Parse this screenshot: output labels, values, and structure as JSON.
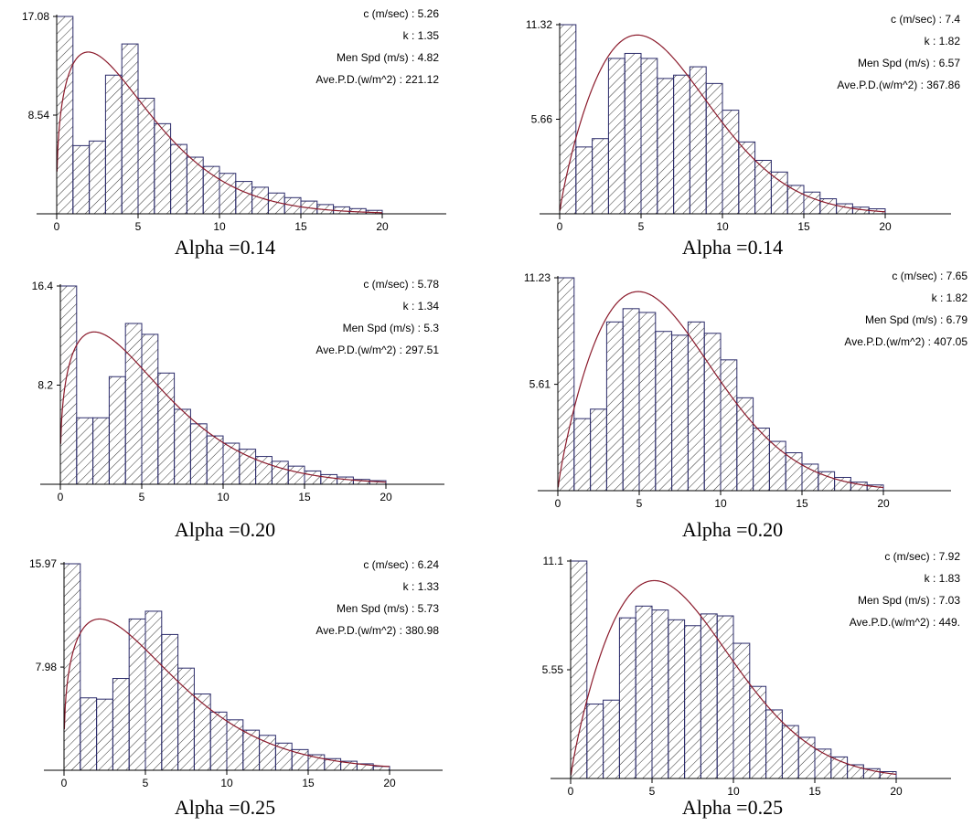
{
  "colors": {
    "bar_stroke": "#2a2a6a",
    "hatch": "#333333",
    "curve": "#8b1a2b",
    "axis": "#000000"
  },
  "chart_data": [
    {
      "type": "bar",
      "caption": "Alpha =0.14",
      "y_ticks": [
        "17.08",
        "8.54"
      ],
      "y_tick_values": [
        17.08,
        8.54
      ],
      "x_ticks": [
        "0",
        "5",
        "10",
        "15",
        "20"
      ],
      "xlim": [
        0,
        24
      ],
      "ylim": [
        0,
        17.08
      ],
      "bin_width": 1,
      "values": [
        17.08,
        5.9,
        6.3,
        12.0,
        14.7,
        10.0,
        7.8,
        6.0,
        4.9,
        4.1,
        3.5,
        2.8,
        2.3,
        1.8,
        1.4,
        1.1,
        0.8,
        0.6,
        0.45,
        0.3
      ],
      "stats": [
        {
          "label": "c (m/sec)",
          "value": "5.26"
        },
        {
          "label": "k",
          "value": "1.35"
        },
        {
          "label": "Men Spd (m/s)",
          "value": "4.82"
        },
        {
          "label": "Ave.P.D.(w/m^2)",
          "value": "221.12"
        }
      ],
      "weibull": {
        "c": 5.26,
        "k": 1.35,
        "peak": 14.0
      }
    },
    {
      "type": "bar",
      "caption": "Alpha =0.14",
      "y_ticks": [
        "11.32",
        "5.66"
      ],
      "y_tick_values": [
        11.32,
        5.66
      ],
      "x_ticks": [
        "0",
        "5",
        "10",
        "15",
        "20"
      ],
      "xlim": [
        0,
        24
      ],
      "ylim": [
        0,
        11.32
      ],
      "bin_width": 1,
      "values": [
        11.32,
        4.0,
        4.5,
        9.3,
        9.6,
        9.3,
        8.1,
        8.3,
        8.8,
        7.8,
        6.2,
        4.3,
        3.2,
        2.5,
        1.7,
        1.3,
        0.9,
        0.6,
        0.4,
        0.3
      ],
      "stats": [
        {
          "label": "c (m/sec)",
          "value": "7.4"
        },
        {
          "label": "k",
          "value": "1.82"
        },
        {
          "label": "Men Spd (m/s)",
          "value": "6.57"
        },
        {
          "label": "Ave.P.D.(w/m^2)",
          "value": "367.86"
        }
      ],
      "weibull": {
        "c": 7.4,
        "k": 1.82,
        "peak": 10.7
      }
    },
    {
      "type": "bar",
      "caption": "Alpha =0.20",
      "y_ticks": [
        "16.4",
        "8.2"
      ],
      "y_tick_values": [
        16.4,
        8.2
      ],
      "x_ticks": [
        "0",
        "5",
        "10",
        "15",
        "20"
      ],
      "xlim": [
        0,
        24
      ],
      "ylim": [
        0,
        16.4
      ],
      "bin_width": 1,
      "values": [
        16.4,
        5.5,
        5.5,
        8.9,
        13.3,
        12.4,
        9.2,
        6.2,
        5.0,
        4.0,
        3.4,
        2.9,
        2.3,
        1.9,
        1.5,
        1.1,
        0.8,
        0.6,
        0.4,
        0.3
      ],
      "stats": [
        {
          "label": "c (m/sec)",
          "value": "5.78"
        },
        {
          "label": "k",
          "value": "1.34"
        },
        {
          "label": "Men Spd (m/s)",
          "value": "5.3"
        },
        {
          "label": "Ave.P.D.(w/m^2)",
          "value": "297.51"
        }
      ],
      "weibull": {
        "c": 5.78,
        "k": 1.34,
        "peak": 12.6
      }
    },
    {
      "type": "bar",
      "caption": "Alpha =0.20",
      "y_ticks": [
        "11.23",
        "5.61"
      ],
      "y_tick_values": [
        11.23,
        5.61
      ],
      "x_ticks": [
        "0",
        "5",
        "10",
        "15",
        "20"
      ],
      "xlim": [
        0,
        24
      ],
      "ylim": [
        0,
        11.23
      ],
      "bin_width": 1,
      "values": [
        11.23,
        3.8,
        4.3,
        8.9,
        9.6,
        9.4,
        8.4,
        8.2,
        8.9,
        8.3,
        6.9,
        4.9,
        3.3,
        2.6,
        2.0,
        1.4,
        1.0,
        0.7,
        0.45,
        0.3
      ],
      "stats": [
        {
          "label": "c (m/sec)",
          "value": "7.65"
        },
        {
          "label": "k",
          "value": "1.82"
        },
        {
          "label": "Men Spd (m/s)",
          "value": "6.79"
        },
        {
          "label": "Ave.P.D.(w/m^2)",
          "value": "407.05"
        }
      ],
      "weibull": {
        "c": 7.65,
        "k": 1.82,
        "peak": 10.5
      }
    },
    {
      "type": "bar",
      "caption": "Alpha =0.25",
      "y_ticks": [
        "15.97",
        "7.98"
      ],
      "y_tick_values": [
        15.97,
        7.98
      ],
      "x_ticks": [
        "0",
        "5",
        "10",
        "15",
        "20"
      ],
      "xlim": [
        0,
        24
      ],
      "ylim": [
        0,
        15.97
      ],
      "bin_width": 1,
      "values": [
        15.97,
        5.6,
        5.5,
        7.1,
        11.7,
        12.3,
        10.5,
        7.9,
        5.9,
        4.5,
        3.9,
        3.1,
        2.7,
        2.1,
        1.6,
        1.2,
        0.9,
        0.7,
        0.5,
        0.3
      ],
      "stats": [
        {
          "label": "c (m/sec)",
          "value": "6.24"
        },
        {
          "label": "k",
          "value": "1.33"
        },
        {
          "label": "Men Spd (m/s)",
          "value": "5.73"
        },
        {
          "label": "Ave.P.D.(w/m^2)",
          "value": "380.98"
        }
      ],
      "weibull": {
        "c": 6.24,
        "k": 1.33,
        "peak": 11.7
      }
    },
    {
      "type": "bar",
      "caption": "Alpha =0.25",
      "y_ticks": [
        "11.1",
        "5.55"
      ],
      "y_tick_values": [
        11.1,
        5.55
      ],
      "x_ticks": [
        "0",
        "5",
        "10",
        "15",
        "20"
      ],
      "xlim": [
        0,
        24
      ],
      "ylim": [
        0,
        11.1
      ],
      "bin_width": 1,
      "values": [
        11.1,
        3.8,
        4.0,
        8.2,
        8.8,
        8.6,
        8.1,
        7.8,
        8.4,
        8.3,
        6.9,
        4.7,
        3.5,
        2.7,
        2.1,
        1.5,
        1.1,
        0.7,
        0.5,
        0.35
      ],
      "stats": [
        {
          "label": "c (m/sec)",
          "value": "7.92"
        },
        {
          "label": "k",
          "value": "1.83"
        },
        {
          "label": "Men Spd (m/s)",
          "value": "7.03"
        },
        {
          "label": "Ave.P.D.(w/m^2)",
          "value": "449."
        }
      ],
      "weibull": {
        "c": 7.92,
        "k": 1.83,
        "peak": 10.1
      }
    }
  ]
}
